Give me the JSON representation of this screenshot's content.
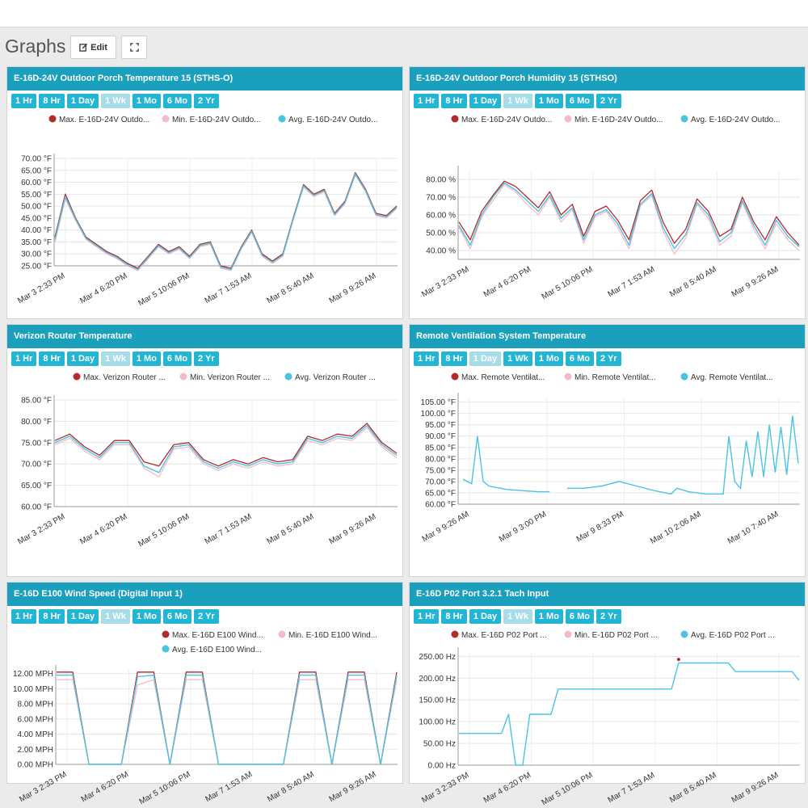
{
  "page": {
    "title": "Graphs",
    "edit_label": "Edit",
    "edit_icon": "edit-icon",
    "fullscreen_icon": "fullscreen-icon"
  },
  "range_buttons": [
    "1 Hr",
    "8 Hr",
    "1 Day",
    "1 Wk",
    "1 Mo",
    "6 Mo",
    "2 Yr"
  ],
  "colors": {
    "header": "#1aa0bd",
    "button": "#22b5d4",
    "button_active": "#a6dde9",
    "max": "#b22a2a",
    "min": "#f4bcc6",
    "avg": "#4bc3e3"
  },
  "panels": [
    {
      "title": "E-16D-24V Outdoor Porch Temperature 15 (STHS-O)",
      "active_range": "1 Wk",
      "legend": [
        "Max. E-16D-24V Outdo...",
        "Min. E-16D-24V Outdo...",
        "Avg. E-16D-24V Outdo..."
      ],
      "chart_data": {
        "type": "line",
        "unit": "°F",
        "y_ticks": [
          "70.00 °F",
          "65.00 °F",
          "60.00 °F",
          "55.00 °F",
          "50.00 °F",
          "45.00 °F",
          "40.00 °F",
          "35.00 °F",
          "30.00 °F",
          "25.00 °F"
        ],
        "ylim": [
          25,
          70
        ],
        "x_ticks": [
          "Mar 3 2:33 PM",
          "Mar 4 6:20 PM",
          "Mar 5 10:06 PM",
          "Mar 7 1:53 AM",
          "Mar 8 5:40 AM",
          "Mar 9 9:26 AM"
        ],
        "series": [
          {
            "role": "max",
            "values": [
              37,
              55,
              45,
              37,
              34,
              31,
              29,
              26,
              24,
              29,
              34,
              31,
              33,
              29,
              34,
              35,
              25,
              24,
              33,
              40,
              30,
              27,
              30,
              45,
              59,
              55,
              57,
              47,
              52,
              64,
              57,
              47,
              46,
              50
            ]
          },
          {
            "role": "min",
            "values": [
              35,
              53,
              44,
              36,
              33,
              30,
              28,
              25,
              23,
              28,
              33,
              30,
              32,
              28,
              33,
              34,
              24,
              23,
              32,
              39,
              29,
              26,
              29,
              44,
              58,
              54,
              56,
              46,
              51,
              63,
              56,
              46,
              45,
              49
            ]
          },
          {
            "role": "avg",
            "values": [
              36,
              54,
              44.5,
              36.5,
              33.5,
              30.5,
              28.5,
              25.5,
              23.5,
              28.5,
              33.5,
              30.5,
              32.5,
              28.5,
              33.5,
              34.5,
              24.5,
              23.5,
              32.5,
              39.5,
              29.5,
              26.5,
              29.5,
              44.5,
              58.5,
              54.5,
              56.5,
              46.5,
              51.5,
              63.5,
              56.5,
              46.5,
              45.5,
              49.5
            ]
          }
        ]
      }
    },
    {
      "title": "E-16D-24V Outdoor Porch Humidity 15 (STHSO)",
      "active_range": "1 Wk",
      "legend": [
        "Max. E-16D-24V Outdo...",
        "Min. E-16D-24V Outdo...",
        "Avg. E-16D-24V Outdo..."
      ],
      "chart_data": {
        "type": "line",
        "unit": "%",
        "y_ticks": [
          "80.00 %",
          "70.00 %",
          "60.00 %",
          "50.00 %",
          "40.00 %"
        ],
        "ylim": [
          35,
          85
        ],
        "x_ticks": [
          "Mar 3 2:33 PM",
          "Mar 4 6:20 PM",
          "Mar 5 10:06 PM",
          "Mar 7 1:53 AM",
          "Mar 8 5:40 AM",
          "Mar 9 9:26 AM"
        ],
        "series": [
          {
            "role": "max",
            "values": [
              56,
              46,
              62,
              71,
              79,
              76,
              70,
              64,
              73,
              60,
              66,
              48,
              62,
              65,
              57,
              46,
              68,
              74,
              56,
              44,
              52,
              69,
              62,
              48,
              52,
              70,
              56,
              46,
              59,
              50,
              43
            ]
          },
          {
            "role": "min",
            "values": [
              53,
              41,
              59,
              68,
              77,
              73,
              66,
              60,
              70,
              56,
              63,
              44,
              59,
              62,
              53,
              41,
              65,
              71,
              51,
              38,
              47,
              66,
              58,
              43,
              48,
              67,
              52,
              41,
              55,
              46,
              40
            ]
          },
          {
            "role": "avg",
            "values": [
              54,
              43,
              60,
              70,
              78,
              74,
              68,
              62,
              71,
              58,
              64,
              46,
              60,
              63,
              55,
              43,
              66,
              72,
              53,
              41,
              49,
              67,
              60,
              45,
              50,
              68,
              54,
              43,
              57,
              48,
              42
            ]
          }
        ]
      }
    },
    {
      "title": "Verizon Router Temperature",
      "active_range": "1 Wk",
      "legend": [
        "Max. Verizon Router ...",
        "Min. Verizon Router ...",
        "Avg. Verizon Router ..."
      ],
      "chart_data": {
        "type": "line",
        "unit": "°F",
        "y_ticks": [
          "85.00 °F",
          "80.00 °F",
          "75.00 °F",
          "70.00 °F",
          "65.00 °F",
          "60.00 °F"
        ],
        "ylim": [
          60,
          85
        ],
        "x_ticks": [
          "Mar 3 2:33 PM",
          "Mar 4 6:20 PM",
          "Mar 5 10:06 PM",
          "Mar 7 1:53 AM",
          "Mar 8 5:40 AM",
          "Mar 9 9:26 AM"
        ],
        "series": [
          {
            "role": "max",
            "values": [
              75.5,
              77,
              74,
              72,
              75.5,
              75.5,
              70.5,
              69.5,
              74.5,
              75,
              71,
              69.5,
              71,
              70,
              71.5,
              70.5,
              71,
              76.5,
              75.5,
              77,
              76.5,
              79.5,
              75,
              72.5
            ]
          },
          {
            "role": "min",
            "values": [
              74.5,
              76,
              73,
              71,
              74.5,
              74.5,
              69,
              67,
              73.5,
              74,
              70,
              68.5,
              70,
              69,
              70.5,
              69.5,
              70,
              75.5,
              74.5,
              76,
              75.5,
              78.5,
              74,
              71.5
            ]
          },
          {
            "role": "avg",
            "values": [
              75,
              76.5,
              73.5,
              71.5,
              75,
              75,
              69.5,
              68,
              74,
              74.5,
              70.5,
              69,
              70.5,
              69.5,
              71,
              70,
              70.5,
              76,
              75,
              76.5,
              76,
              79,
              74.5,
              72
            ]
          }
        ]
      }
    },
    {
      "title": "Remote Ventilation System Temperature",
      "active_range": "1 Day",
      "legend": [
        "Max. Remote Ventilat...",
        "Min. Remote Ventilat...",
        "Avg. Remote Ventilat..."
      ],
      "chart_data": {
        "type": "line",
        "unit": "°F",
        "y_ticks": [
          "105.00 °F",
          "100.00 °F",
          "95.00 °F",
          "90.00 °F",
          "85.00 °F",
          "80.00 °F",
          "75.00 °F",
          "70.00 °F",
          "65.00 °F",
          "60.00 °F"
        ],
        "ylim": [
          60,
          107
        ],
        "x_ticks": [
          "Mar 9 9:26 AM",
          "Mar 9 3:00 PM",
          "Mar 9 8:33 PM",
          "Mar 10 2:06 AM",
          "Mar 10 7:40 AM"
        ],
        "series": [
          {
            "role": "avg",
            "segments": [
              [
                [
                  0,
                  71
                ],
                [
                  3,
                  69
                ],
                [
                  5,
                  90
                ],
                [
                  7,
                  70
                ],
                [
                  9,
                  68
                ],
                [
                  11,
                  67.5
                ],
                [
                  15,
                  66.5
                ],
                [
                  20,
                  66
                ],
                [
                  26,
                  65.5
                ],
                [
                  30,
                  65.5
                ]
              ],
              [
                [
                  36,
                  67
                ],
                [
                  42,
                  67
                ],
                [
                  48,
                  68
                ],
                [
                  54,
                  70
                ],
                [
                  60,
                  68
                ],
                [
                  66,
                  66
                ],
                [
                  72,
                  64.5
                ],
                [
                  74,
                  67
                ],
                [
                  78,
                  65.5
                ],
                [
                  84,
                  64.5
                ],
                [
                  90,
                  64.5
                ],
                [
                  92,
                  90
                ],
                [
                  94,
                  70
                ],
                [
                  96,
                  67
                ],
                [
                  98,
                  88
                ],
                [
                  100,
                  72
                ],
                [
                  102,
                  92
                ],
                [
                  104,
                  72
                ],
                [
                  106,
                  95
                ],
                [
                  108,
                  74
                ],
                [
                  110,
                  94
                ],
                [
                  112,
                  73
                ],
                [
                  114,
                  99
                ],
                [
                  116,
                  78
                ]
              ]
            ]
          }
        ]
      }
    },
    {
      "title": "E-16D E100 Wind Speed (Digital Input 1)",
      "active_range": "1 Wk",
      "legend": [
        "Max. E-16D E100 Wind...",
        "Min. E-16D E100 Wind...",
        "Avg. E-16D E100 Wind..."
      ],
      "chart_data": {
        "type": "line",
        "unit": "MPH",
        "y_ticks": [
          "12.00 MPH",
          "10.00 MPH",
          "8.00 MPH",
          "6.00 MPH",
          "4.00 MPH",
          "2.00 MPH",
          "0.00 MPH"
        ],
        "ylim": [
          0,
          12.5
        ],
        "x_ticks": [
          "Mar 3 2:33 PM",
          "Mar 4 6:20 PM",
          "Mar 5 10:06 PM",
          "Mar 7 1:53 AM",
          "Mar 8 5:40 AM",
          "Mar 9 9:26 AM"
        ],
        "series": [
          {
            "role": "max",
            "values": [
              12.2,
              12.2,
              0,
              0,
              0,
              12.2,
              12.2,
              0,
              12.2,
              12.2,
              0,
              0,
              0,
              0,
              0,
              12.2,
              12.2,
              0,
              12.2,
              12.2,
              0,
              12.2
            ]
          },
          {
            "role": "min",
            "values": [
              11.2,
              11.2,
              0,
              0,
              0,
              10.5,
              11.2,
              0,
              11.2,
              11.2,
              0,
              0,
              0,
              0,
              0,
              11.2,
              11.2,
              0,
              11.2,
              11.2,
              0,
              11.2
            ]
          },
          {
            "role": "avg",
            "values": [
              11.8,
              11.8,
              0,
              0,
              0,
              11.6,
              11.8,
              0,
              11.8,
              11.8,
              0,
              0,
              0,
              0,
              0,
              11.8,
              11.8,
              0,
              11.8,
              11.8,
              0,
              11.8
            ]
          }
        ]
      }
    },
    {
      "title": "E-16D P02 Port 3.2.1 Tach Input",
      "active_range": "1 Wk",
      "legend": [
        "Max. E-16D P02 Port ...",
        "Min. E-16D P02 Port ...",
        "Avg. E-16D P02 Port ..."
      ],
      "chart_data": {
        "type": "line",
        "unit": "Hz",
        "y_ticks": [
          "250.00 Hz",
          "200.00 Hz",
          "150.00 Hz",
          "100.00 Hz",
          "50.00 Hz",
          "0.00 Hz"
        ],
        "ylim": [
          0,
          260
        ],
        "x_ticks": [
          "Mar 3 2:33 PM",
          "Mar 4 6:20 PM",
          "Mar 5 10:06 PM",
          "Mar 7 1:53 AM",
          "Mar 8 5:40 AM",
          "Mar 9 9:26 AM"
        ],
        "series": [
          {
            "role": "avg",
            "values": [
              73,
              73,
              73,
              73,
              73,
              73,
              73,
              117,
              0,
              0,
              117,
              117,
              117,
              117,
              175,
              175,
              175,
              175,
              175,
              175,
              175,
              175,
              175,
              175,
              175,
              175,
              175,
              175,
              175,
              175,
              175,
              235,
              235,
              235,
              235,
              235,
              235,
              235,
              235,
              215,
              215,
              215,
              215,
              215,
              215,
              215,
              215,
              215,
              195
            ]
          },
          {
            "role": "max_spike",
            "values": [
              243
            ]
          }
        ]
      }
    }
  ]
}
